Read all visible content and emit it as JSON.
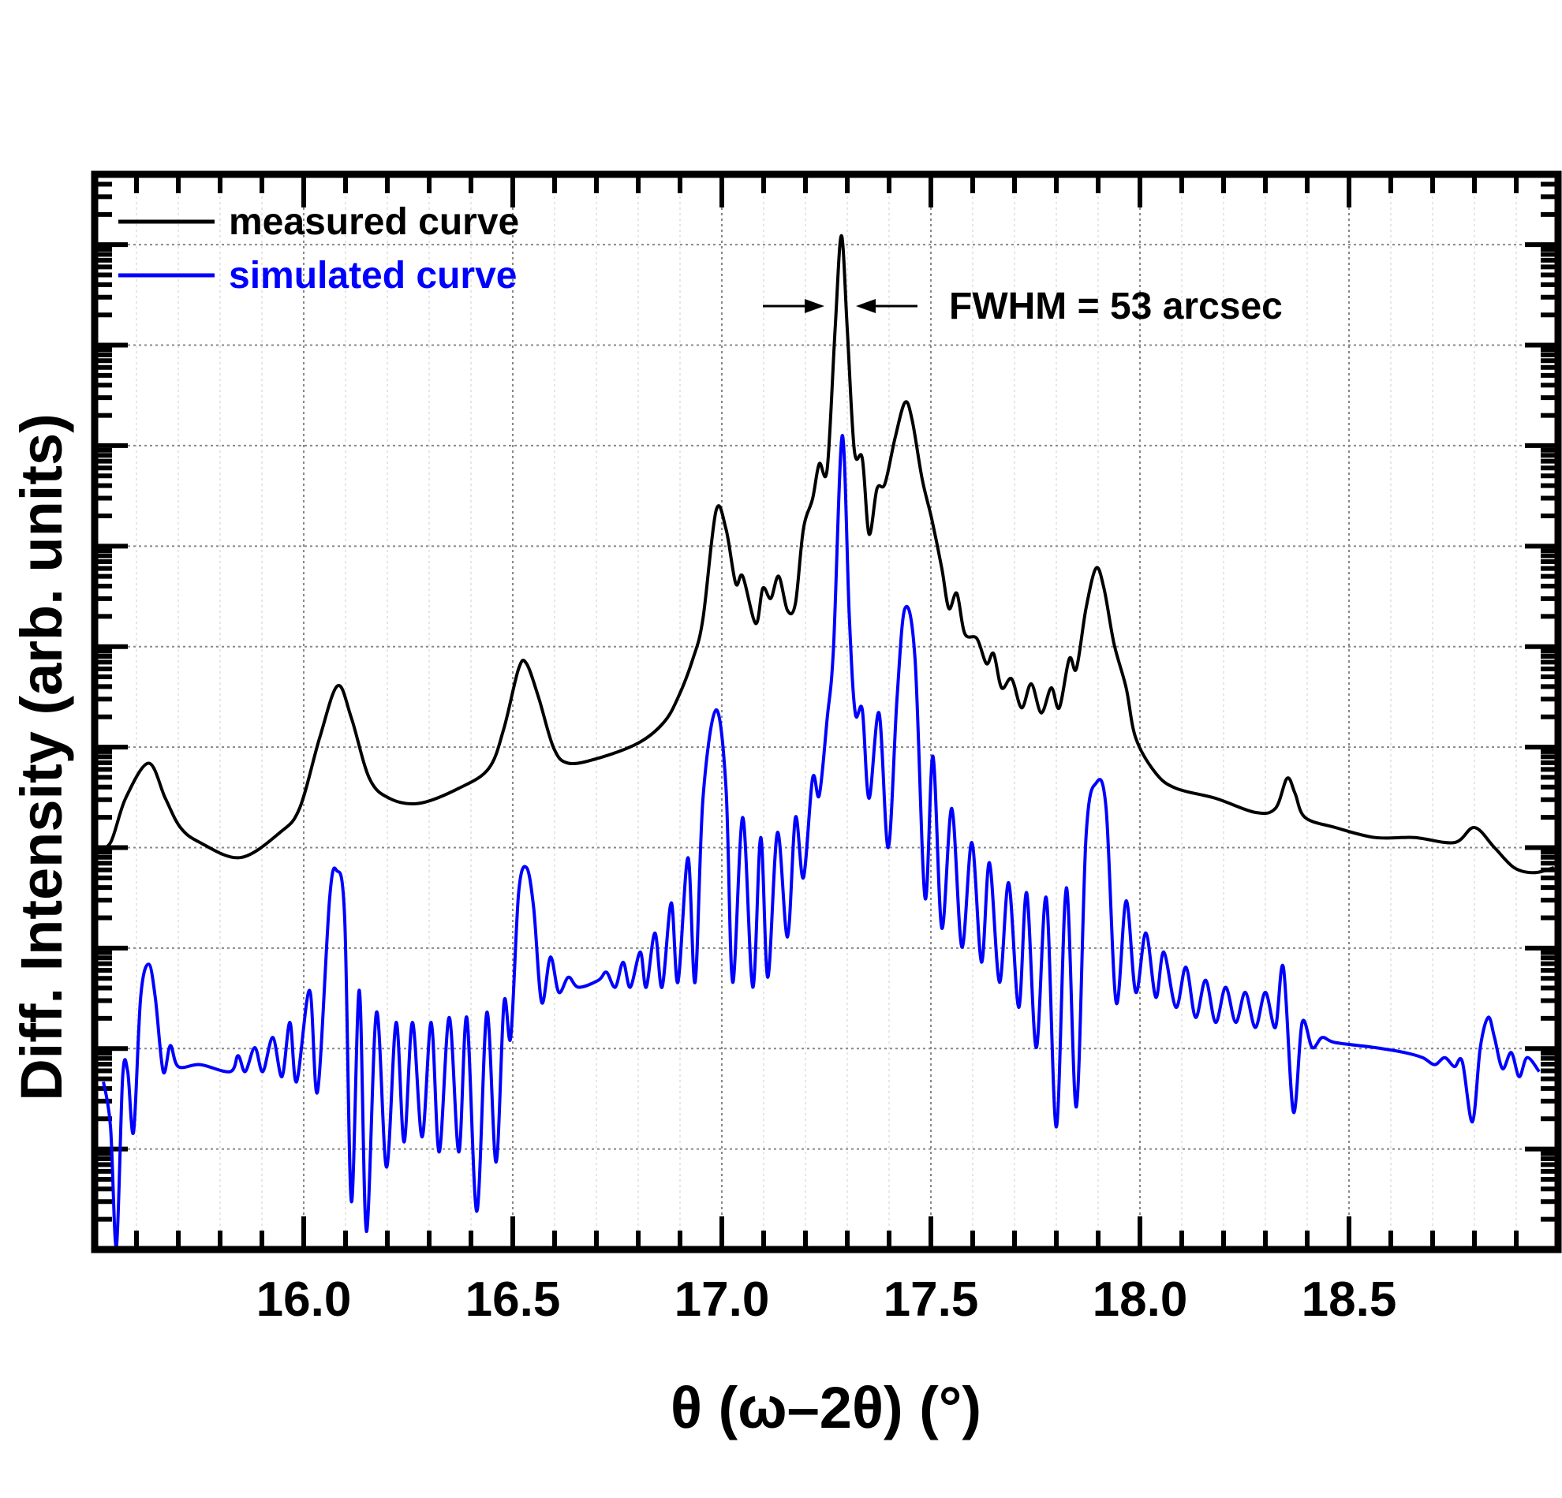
{
  "chart_data": {
    "type": "line",
    "title": "",
    "xlabel": "θ (ω–2θ) (°)",
    "ylabel": "Diff. Intensity (arb. units)",
    "xlim": [
      15.5,
      19.0
    ],
    "x_ticks": [
      "16.0",
      "16.5",
      "17.0",
      "17.5",
      "18.0",
      "18.5"
    ],
    "yscale": "log",
    "y_units": "log10 intensity (decades, arb.)",
    "ylim": [
      0,
      10.7
    ],
    "y_tick_labels_shown": false,
    "grid": true,
    "legend_position": "top-left",
    "annotation": {
      "text": "FWHM = 53 arcsec",
      "at_x": 17.286
    },
    "series": [
      {
        "name": "measured curve",
        "color": "#000000",
        "points": [
          [
            15.507,
            4.0
          ],
          [
            15.538,
            4.05
          ],
          [
            15.574,
            4.49
          ],
          [
            15.629,
            4.84
          ],
          [
            15.669,
            4.49
          ],
          [
            15.705,
            4.2
          ],
          [
            15.752,
            4.05
          ],
          [
            15.848,
            3.9
          ],
          [
            15.943,
            4.15
          ],
          [
            15.99,
            4.39
          ],
          [
            16.038,
            5.09
          ],
          [
            16.081,
            5.61
          ],
          [
            16.114,
            5.29
          ],
          [
            16.157,
            4.69
          ],
          [
            16.205,
            4.49
          ],
          [
            16.276,
            4.44
          ],
          [
            16.371,
            4.59
          ],
          [
            16.443,
            4.79
          ],
          [
            16.479,
            5.19
          ],
          [
            16.514,
            5.78
          ],
          [
            16.533,
            5.83
          ],
          [
            16.562,
            5.49
          ],
          [
            16.598,
            4.99
          ],
          [
            16.633,
            4.84
          ],
          [
            16.705,
            4.89
          ],
          [
            16.8,
            5.04
          ],
          [
            16.86,
            5.24
          ],
          [
            16.895,
            5.49
          ],
          [
            16.931,
            5.88
          ],
          [
            16.955,
            6.28
          ],
          [
            16.986,
            7.35
          ],
          [
            17.01,
            7.17
          ],
          [
            17.033,
            6.63
          ],
          [
            17.05,
            6.7
          ],
          [
            17.081,
            6.23
          ],
          [
            17.098,
            6.58
          ],
          [
            17.117,
            6.48
          ],
          [
            17.136,
            6.7
          ],
          [
            17.157,
            6.36
          ],
          [
            17.176,
            6.43
          ],
          [
            17.195,
            7.17
          ],
          [
            17.217,
            7.47
          ],
          [
            17.233,
            7.82
          ],
          [
            17.252,
            7.77
          ],
          [
            17.271,
            9.16
          ],
          [
            17.286,
            10.09
          ],
          [
            17.3,
            9.16
          ],
          [
            17.317,
            7.95
          ],
          [
            17.336,
            7.87
          ],
          [
            17.352,
            7.12
          ],
          [
            17.371,
            7.57
          ],
          [
            17.39,
            7.62
          ],
          [
            17.414,
            8.07
          ],
          [
            17.438,
            8.43
          ],
          [
            17.455,
            8.26
          ],
          [
            17.479,
            7.67
          ],
          [
            17.502,
            7.27
          ],
          [
            17.526,
            6.78
          ],
          [
            17.543,
            6.38
          ],
          [
            17.562,
            6.53
          ],
          [
            17.581,
            6.13
          ],
          [
            17.61,
            6.08
          ],
          [
            17.633,
            5.83
          ],
          [
            17.65,
            5.93
          ],
          [
            17.669,
            5.59
          ],
          [
            17.693,
            5.68
          ],
          [
            17.717,
            5.39
          ],
          [
            17.74,
            5.63
          ],
          [
            17.764,
            5.34
          ],
          [
            17.788,
            5.59
          ],
          [
            17.807,
            5.39
          ],
          [
            17.831,
            5.88
          ],
          [
            17.848,
            5.78
          ],
          [
            17.871,
            6.38
          ],
          [
            17.895,
            6.78
          ],
          [
            17.914,
            6.58
          ],
          [
            17.938,
            6.03
          ],
          [
            17.967,
            5.59
          ],
          [
            17.99,
            5.09
          ],
          [
            18.038,
            4.74
          ],
          [
            18.086,
            4.59
          ],
          [
            18.181,
            4.49
          ],
          [
            18.276,
            4.35
          ],
          [
            18.324,
            4.39
          ],
          [
            18.352,
            4.69
          ],
          [
            18.371,
            4.54
          ],
          [
            18.395,
            4.3
          ],
          [
            18.467,
            4.2
          ],
          [
            18.562,
            4.1
          ],
          [
            18.657,
            4.1
          ],
          [
            18.752,
            4.05
          ],
          [
            18.8,
            4.2
          ],
          [
            18.848,
            4.0
          ],
          [
            18.895,
            3.8
          ],
          [
            18.943,
            3.75
          ],
          [
            18.99,
            3.8
          ]
        ]
      },
      {
        "name": "simulated curve",
        "color": "#0000ff",
        "points": [
          [
            15.521,
            1.67
          ],
          [
            15.538,
            1.22
          ],
          [
            15.552,
            0.03
          ],
          [
            15.567,
            1.72
          ],
          [
            15.579,
            1.77
          ],
          [
            15.593,
            1.17
          ],
          [
            15.61,
            2.51
          ],
          [
            15.629,
            2.84
          ],
          [
            15.645,
            2.51
          ],
          [
            15.664,
            1.77
          ],
          [
            15.681,
            2.03
          ],
          [
            15.7,
            1.82
          ],
          [
            15.752,
            1.84
          ],
          [
            15.824,
            1.77
          ],
          [
            15.843,
            1.93
          ],
          [
            15.86,
            1.77
          ],
          [
            15.883,
            2.01
          ],
          [
            15.902,
            1.77
          ],
          [
            15.926,
            2.11
          ],
          [
            15.948,
            1.72
          ],
          [
            15.967,
            2.26
          ],
          [
            15.983,
            1.67
          ],
          [
            16.014,
            2.58
          ],
          [
            16.033,
            1.57
          ],
          [
            16.062,
            3.5
          ],
          [
            16.079,
            3.77
          ],
          [
            16.098,
            3.3
          ],
          [
            16.114,
            0.48
          ],
          [
            16.133,
            2.58
          ],
          [
            16.15,
            0.18
          ],
          [
            16.174,
            2.36
          ],
          [
            16.198,
            0.82
          ],
          [
            16.221,
            2.26
          ],
          [
            16.24,
            1.07
          ],
          [
            16.26,
            2.26
          ],
          [
            16.283,
            1.12
          ],
          [
            16.305,
            2.26
          ],
          [
            16.324,
            0.97
          ],
          [
            16.348,
            2.31
          ],
          [
            16.371,
            0.97
          ],
          [
            16.39,
            2.31
          ],
          [
            16.414,
            0.38
          ],
          [
            16.438,
            2.36
          ],
          [
            16.46,
            0.87
          ],
          [
            16.479,
            2.46
          ],
          [
            16.495,
            2.11
          ],
          [
            16.514,
            3.55
          ],
          [
            16.533,
            3.8
          ],
          [
            16.55,
            3.4
          ],
          [
            16.569,
            2.46
          ],
          [
            16.59,
            2.91
          ],
          [
            16.61,
            2.56
          ],
          [
            16.633,
            2.71
          ],
          [
            16.657,
            2.61
          ],
          [
            16.705,
            2.68
          ],
          [
            16.724,
            2.76
          ],
          [
            16.745,
            2.61
          ],
          [
            16.764,
            2.86
          ],
          [
            16.781,
            2.61
          ],
          [
            16.805,
            2.96
          ],
          [
            16.819,
            2.61
          ],
          [
            16.84,
            3.15
          ],
          [
            16.857,
            2.61
          ],
          [
            16.879,
            3.45
          ],
          [
            16.895,
            2.66
          ],
          [
            16.919,
            3.9
          ],
          [
            16.936,
            2.66
          ],
          [
            16.955,
            4.49
          ],
          [
            16.986,
            5.37
          ],
          [
            17.01,
            4.59
          ],
          [
            17.026,
            2.66
          ],
          [
            17.05,
            4.3
          ],
          [
            17.074,
            2.61
          ],
          [
            17.093,
            4.1
          ],
          [
            17.11,
            2.71
          ],
          [
            17.133,
            4.15
          ],
          [
            17.157,
            3.11
          ],
          [
            17.176,
            4.3
          ],
          [
            17.195,
            3.7
          ],
          [
            17.217,
            4.69
          ],
          [
            17.233,
            4.52
          ],
          [
            17.252,
            5.29
          ],
          [
            17.267,
            5.98
          ],
          [
            17.288,
            8.1
          ],
          [
            17.305,
            6.28
          ],
          [
            17.319,
            5.34
          ],
          [
            17.336,
            5.37
          ],
          [
            17.352,
            4.49
          ],
          [
            17.376,
            5.34
          ],
          [
            17.398,
            4.0
          ],
          [
            17.419,
            5.49
          ],
          [
            17.438,
            6.38
          ],
          [
            17.462,
            5.88
          ],
          [
            17.486,
            3.5
          ],
          [
            17.505,
            4.91
          ],
          [
            17.526,
            3.2
          ],
          [
            17.55,
            4.39
          ],
          [
            17.574,
            3.01
          ],
          [
            17.598,
            4.05
          ],
          [
            17.621,
            2.86
          ],
          [
            17.64,
            3.85
          ],
          [
            17.664,
            2.66
          ],
          [
            17.686,
            3.65
          ],
          [
            17.71,
            2.41
          ],
          [
            17.729,
            3.55
          ],
          [
            17.752,
            2.01
          ],
          [
            17.776,
            3.5
          ],
          [
            17.8,
            1.22
          ],
          [
            17.824,
            3.6
          ],
          [
            17.848,
            1.42
          ],
          [
            17.871,
            4.1
          ],
          [
            17.895,
            4.64
          ],
          [
            17.919,
            4.39
          ],
          [
            17.943,
            2.46
          ],
          [
            17.967,
            3.47
          ],
          [
            17.99,
            2.56
          ],
          [
            18.014,
            3.15
          ],
          [
            18.038,
            2.51
          ],
          [
            18.057,
            2.96
          ],
          [
            18.086,
            2.41
          ],
          [
            18.11,
            2.81
          ],
          [
            18.133,
            2.31
          ],
          [
            18.157,
            2.68
          ],
          [
            18.181,
            2.26
          ],
          [
            18.205,
            2.61
          ],
          [
            18.229,
            2.26
          ],
          [
            18.252,
            2.56
          ],
          [
            18.276,
            2.21
          ],
          [
            18.3,
            2.56
          ],
          [
            18.324,
            2.21
          ],
          [
            18.343,
            2.81
          ],
          [
            18.367,
            1.37
          ],
          [
            18.388,
            2.26
          ],
          [
            18.412,
            2.01
          ],
          [
            18.436,
            2.11
          ],
          [
            18.467,
            2.06
          ],
          [
            18.562,
            2.01
          ],
          [
            18.633,
            1.96
          ],
          [
            18.676,
            1.91
          ],
          [
            18.705,
            1.84
          ],
          [
            18.729,
            1.91
          ],
          [
            18.752,
            1.82
          ],
          [
            18.771,
            1.87
          ],
          [
            18.795,
            1.27
          ],
          [
            18.814,
            2.01
          ],
          [
            18.833,
            2.31
          ],
          [
            18.848,
            2.11
          ],
          [
            18.867,
            1.8
          ],
          [
            18.888,
            1.96
          ],
          [
            18.907,
            1.72
          ],
          [
            18.926,
            1.91
          ],
          [
            18.955,
            1.77
          ]
        ]
      }
    ]
  }
}
